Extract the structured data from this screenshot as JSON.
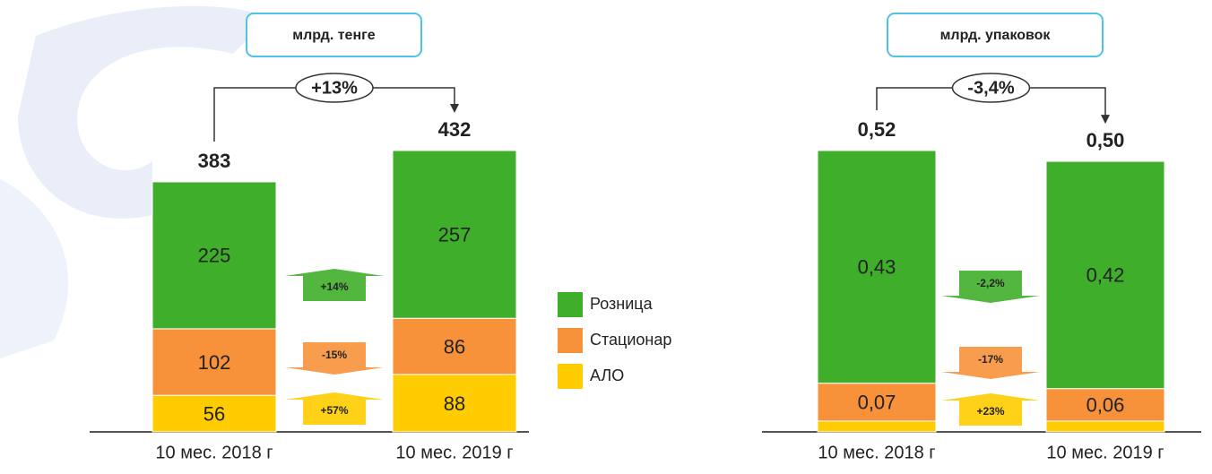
{
  "chart_data": [
    {
      "type": "bar",
      "stacked": true,
      "title": "млрд. тенге",
      "categories": [
        "10 мес. 2018 г",
        "10 мес. 2019 г"
      ],
      "series": [
        {
          "name": "Розница",
          "color": "#3fae2a",
          "values": [
            225,
            257
          ],
          "change": {
            "value": 14,
            "label": "+14%"
          }
        },
        {
          "name": "Стационар",
          "color": "#f7923a",
          "values": [
            102,
            86
          ],
          "change": {
            "value": -15,
            "label": "-15%"
          }
        },
        {
          "name": "АЛО",
          "color": "#ffcc00",
          "values": [
            56,
            88
          ],
          "change": {
            "value": 57,
            "label": "+57%"
          }
        }
      ],
      "totals": {
        "values": [
          383,
          432
        ]
      },
      "total_change": {
        "value": 13,
        "label": "+13%"
      },
      "legend": "right"
    },
    {
      "type": "bar",
      "stacked": true,
      "title": "млрд. упаковок",
      "categories": [
        "10 мес. 2018 г",
        "10 мес. 2019 г"
      ],
      "series": [
        {
          "color": "#3fae2a",
          "values": [
            0.43,
            0.42
          ],
          "value_labels": [
            "0,43",
            "0,42"
          ],
          "change": {
            "value": -2.2,
            "label": "-2,2%"
          }
        },
        {
          "color": "#f7923a",
          "values": [
            0.07,
            0.06
          ],
          "value_labels": [
            "0,07",
            "0,06"
          ],
          "change": {
            "value": -17,
            "label": "-17%"
          }
        },
        {
          "color": "#ffcc00",
          "values": [
            0.02,
            0.02
          ],
          "labels": false,
          "change": {
            "value": 23,
            "label": "+23%"
          }
        }
      ],
      "totals": {
        "values": [
          0.52,
          0.5
        ],
        "value_labels": [
          "0,52",
          "0,50"
        ]
      },
      "total_change": {
        "value": -3.4,
        "label": "-3,4%"
      }
    }
  ]
}
